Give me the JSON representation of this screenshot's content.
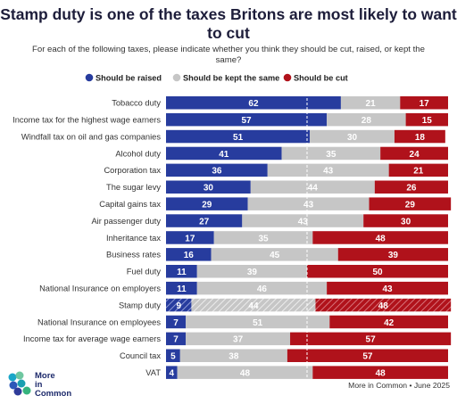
{
  "title": "Stamp duty is one of the taxes Britons are most likely to want to cut",
  "subtitle": "For each of the following taxes, please indicate whether you think they should be cut, raised, or kept the same?",
  "brand": {
    "name_line1": "More",
    "name_line2": "in",
    "name_line3": "Common",
    "icon": "more-in-common-logo"
  },
  "source": "More in Common • June 2025",
  "colors": {
    "raised": "#273c9e",
    "same": "#c6c6c6",
    "cut": "#b0121b",
    "title": "#1d1d3a"
  },
  "chart_data": {
    "type": "bar",
    "orientation": "horizontal",
    "stacked": true,
    "xlim": [
      0,
      100
    ],
    "reference_line": 50,
    "legend_position": "top",
    "categories": [
      "Tobacco duty",
      "Income tax for the highest wage earners",
      "Windfall tax on oil and gas companies",
      "Alcohol duty",
      "Corporation tax",
      "The sugar levy",
      "Capital gains tax",
      "Air passenger duty",
      "Inheritance tax",
      "Business rates",
      "Fuel duty",
      "National Insurance on employers",
      "Stamp duty",
      "National Insurance on employees",
      "Income tax for average wage earners",
      "Council tax",
      "VAT"
    ],
    "highlighted_category": "Stamp duty",
    "series": [
      {
        "name": "Should be raised",
        "values": [
          62,
          57,
          51,
          41,
          36,
          30,
          29,
          27,
          17,
          16,
          11,
          11,
          9,
          7,
          7,
          5,
          4
        ]
      },
      {
        "name": "Should be kept the same",
        "values": [
          21,
          28,
          30,
          35,
          43,
          44,
          43,
          43,
          35,
          45,
          39,
          46,
          44,
          51,
          37,
          38,
          48
        ]
      },
      {
        "name": "Should be cut",
        "values": [
          17,
          15,
          18,
          24,
          21,
          26,
          29,
          30,
          48,
          39,
          50,
          43,
          48,
          42,
          57,
          57,
          48
        ]
      }
    ]
  }
}
